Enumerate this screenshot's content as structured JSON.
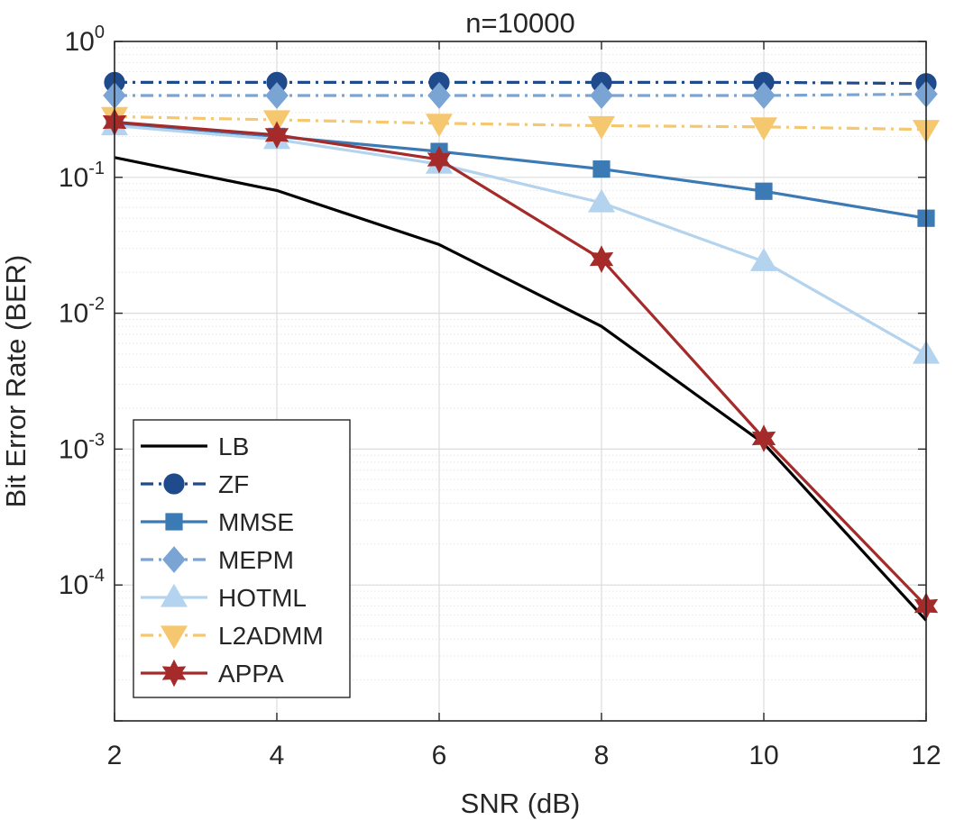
{
  "chart_data": {
    "type": "line",
    "title": "n=10000",
    "xlabel": "SNR (dB)",
    "ylabel": "Bit Error Rate (BER)",
    "x": [
      2,
      4,
      6,
      8,
      10,
      12
    ],
    "xlim": [
      2,
      12
    ],
    "ylim": [
      1e-05,
      1
    ],
    "yscale": "log",
    "grid": true,
    "xticks": [
      "2",
      "4",
      "6",
      "8",
      "10",
      "12"
    ],
    "yticks": [
      {
        "base": "10",
        "exp": "0",
        "value": 1
      },
      {
        "base": "10",
        "exp": "-1",
        "value": 0.1
      },
      {
        "base": "10",
        "exp": "-2",
        "value": 0.01
      },
      {
        "base": "10",
        "exp": "-3",
        "value": 0.001
      },
      {
        "base": "10",
        "exp": "-4",
        "value": 0.0001
      }
    ],
    "legend_position": "bottom-left",
    "series": [
      {
        "name": "LB",
        "values": [
          0.14,
          0.08,
          0.032,
          0.008,
          0.0011,
          5.5e-05
        ],
        "color": "#000000",
        "dash": "solid",
        "marker": "none"
      },
      {
        "name": "ZF",
        "values": [
          0.5,
          0.5,
          0.5,
          0.5,
          0.5,
          0.49
        ],
        "color": "#1f4a8c",
        "dash": "dashdot",
        "marker": "circle"
      },
      {
        "name": "MMSE",
        "values": [
          0.25,
          0.2,
          0.155,
          0.115,
          0.079,
          0.05
        ],
        "color": "#3c7ab5",
        "dash": "solid",
        "marker": "square"
      },
      {
        "name": "MEPM",
        "values": [
          0.4,
          0.4,
          0.4,
          0.4,
          0.4,
          0.41
        ],
        "color": "#7aa4d4",
        "dash": "dashdot",
        "marker": "diamond"
      },
      {
        "name": "HOTML",
        "values": [
          0.24,
          0.19,
          0.125,
          0.065,
          0.024,
          0.005
        ],
        "color": "#b3d3ee",
        "dash": "solid",
        "marker": "triangle-up"
      },
      {
        "name": "L2ADMM",
        "values": [
          0.28,
          0.265,
          0.25,
          0.24,
          0.235,
          0.225
        ],
        "color": "#f5c76e",
        "dash": "dashdot",
        "marker": "triangle-down"
      },
      {
        "name": "APPA",
        "values": [
          0.255,
          0.205,
          0.135,
          0.025,
          0.0012,
          7e-05
        ],
        "color": "#a52a2a",
        "dash": "solid",
        "marker": "hexagram"
      }
    ]
  }
}
